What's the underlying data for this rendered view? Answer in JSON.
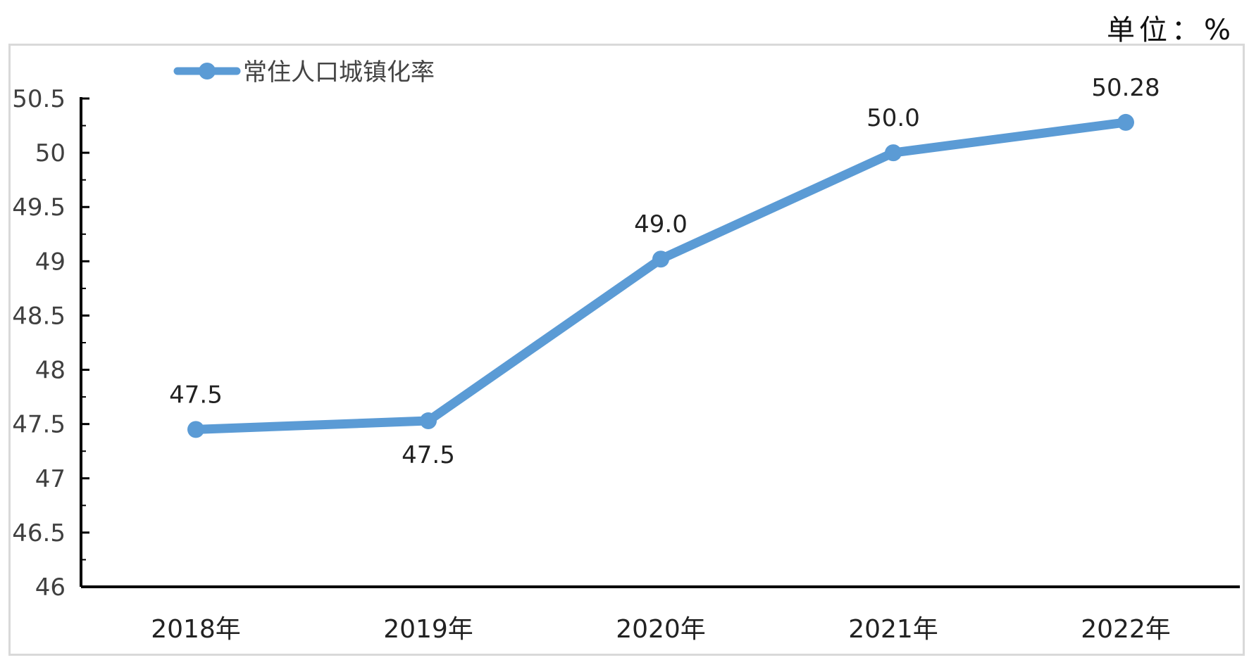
{
  "unit_label": "单位：%",
  "chart_data": {
    "type": "line",
    "categories": [
      "2018年",
      "2019年",
      "2020年",
      "2021年",
      "2022年"
    ],
    "series": [
      {
        "name": "常住人口城镇化率",
        "values": [
          47.45,
          47.53,
          49.02,
          50.0,
          50.28
        ],
        "color": "#5b9bd5"
      }
    ],
    "data_labels": [
      "47.5",
      "47.5",
      "49.0",
      "50.0",
      "50.28"
    ],
    "ylim": [
      46,
      50.5
    ],
    "yticks": [
      46,
      46.5,
      47,
      47.5,
      48,
      48.5,
      49,
      49.5,
      50,
      50.5
    ],
    "ytick_labels": [
      "46",
      "46.5",
      "47",
      "47.5",
      "48",
      "48.5",
      "49",
      "49.5",
      "50",
      "50.5"
    ],
    "legend": "top-left",
    "grid": false
  }
}
